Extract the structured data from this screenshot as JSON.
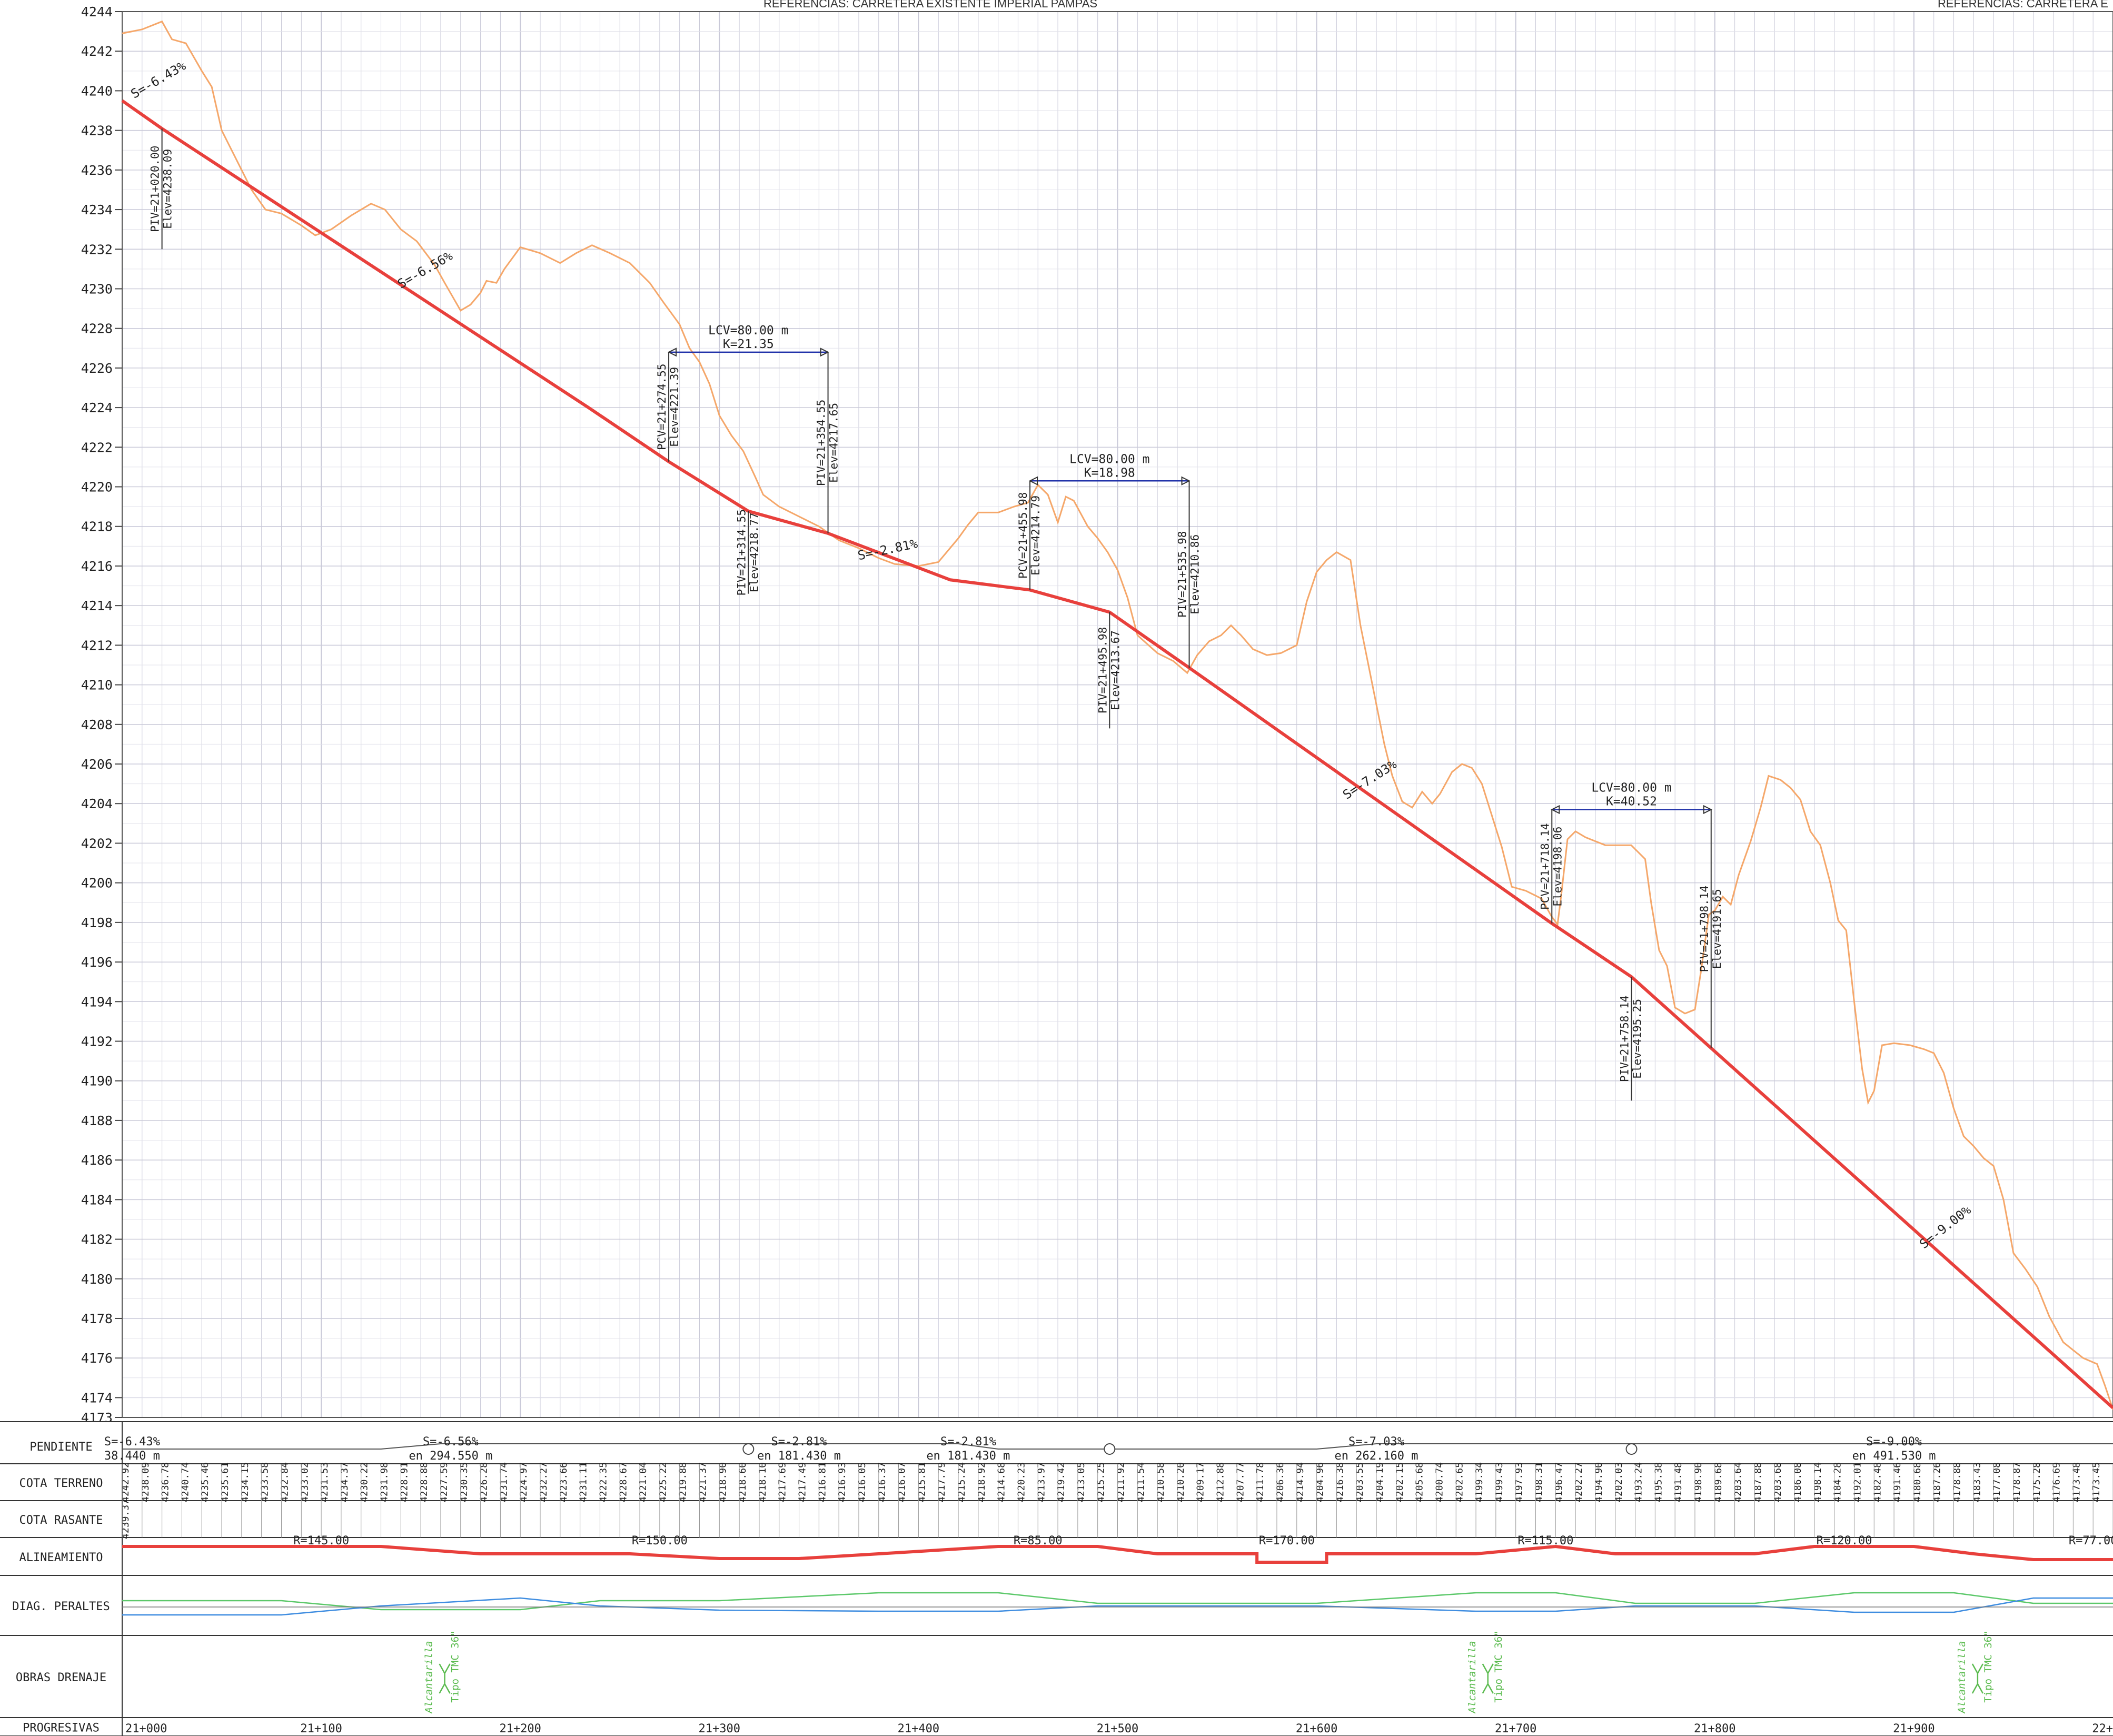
{
  "header": {
    "references_left": "REFERENCIAS:   CARRETERA EXISTENTE IMPERIAL PAMPAS",
    "references_right": "REFERENCIAS:   CARRETERA E"
  },
  "chart_data": {
    "type": "line",
    "x_range": [
      21000,
      22000
    ],
    "ylim": [
      4173,
      4244
    ],
    "y_ticks": [
      4244,
      4242,
      4240,
      4238,
      4236,
      4234,
      4232,
      4230,
      4228,
      4226,
      4224,
      4222,
      4220,
      4218,
      4216,
      4214,
      4212,
      4210,
      4208,
      4206,
      4204,
      4202,
      4200,
      4198,
      4196,
      4194,
      4192,
      4190,
      4188,
      4186,
      4184,
      4182,
      4180,
      4178,
      4176,
      4174,
      4173
    ],
    "ground_profile": [
      [
        21000,
        4242.9
      ],
      [
        21010,
        4243.1
      ],
      [
        21020,
        4243.5
      ],
      [
        21025,
        4242.6
      ],
      [
        21032,
        4242.4
      ],
      [
        21040,
        4241
      ],
      [
        21045,
        4240.2
      ],
      [
        21050,
        4238
      ],
      [
        21055,
        4237
      ],
      [
        21060,
        4236
      ],
      [
        21065,
        4235
      ],
      [
        21072,
        4234
      ],
      [
        21080,
        4233.8
      ],
      [
        21090,
        4233.2
      ],
      [
        21097,
        4232.7
      ],
      [
        21105,
        4233
      ],
      [
        21115,
        4233.7
      ],
      [
        21125,
        4234.3
      ],
      [
        21132,
        4234
      ],
      [
        21140,
        4233
      ],
      [
        21148,
        4232.4
      ],
      [
        21157,
        4231.2
      ],
      [
        21162,
        4230.3
      ],
      [
        21170,
        4228.9
      ],
      [
        21175,
        4229.2
      ],
      [
        21180,
        4229.8
      ],
      [
        21183,
        4230.4
      ],
      [
        21188,
        4230.3
      ],
      [
        21192,
        4231
      ],
      [
        21200,
        4232.1
      ],
      [
        21210,
        4231.8
      ],
      [
        21220,
        4231.3
      ],
      [
        21228,
        4231.8
      ],
      [
        21236,
        4232.2
      ],
      [
        21245,
        4231.8
      ],
      [
        21255,
        4231.3
      ],
      [
        21265,
        4230.3
      ],
      [
        21272,
        4229.3
      ],
      [
        21280,
        4228.2
      ],
      [
        21285,
        4227
      ],
      [
        21290,
        4226.3
      ],
      [
        21295,
        4225.2
      ],
      [
        21300,
        4223.6
      ],
      [
        21306,
        4222.6
      ],
      [
        21312,
        4221.8
      ],
      [
        21318,
        4220.5
      ],
      [
        21322,
        4219.6
      ],
      [
        21330,
        4219
      ],
      [
        21340,
        4218.5
      ],
      [
        21350,
        4218
      ],
      [
        21360,
        4217.3
      ],
      [
        21370,
        4216.9
      ],
      [
        21380,
        4216.4
      ],
      [
        21388,
        4216.1
      ],
      [
        21400,
        4216
      ],
      [
        21410,
        4216.2
      ],
      [
        21415,
        4216.8
      ],
      [
        21420,
        4217.4
      ],
      [
        21425,
        4218.1
      ],
      [
        21430,
        4218.7
      ],
      [
        21440,
        4218.7
      ],
      [
        21448,
        4219
      ],
      [
        21455,
        4219.2
      ],
      [
        21460,
        4220.1
      ],
      [
        21465,
        4219.6
      ],
      [
        21470,
        4218.2
      ],
      [
        21474,
        4219.5
      ],
      [
        21478,
        4219.3
      ],
      [
        21485,
        4218
      ],
      [
        21490,
        4217.4
      ],
      [
        21495,
        4216.7
      ],
      [
        21500,
        4215.8
      ],
      [
        21505,
        4214.4
      ],
      [
        21510,
        4212.5
      ],
      [
        21520,
        4211.6
      ],
      [
        21528,
        4211.2
      ],
      [
        21535,
        4210.6
      ],
      [
        21540,
        4211.5
      ],
      [
        21546,
        4212.2
      ],
      [
        21552,
        4212.5
      ],
      [
        21557,
        4213
      ],
      [
        21562,
        4212.5
      ],
      [
        21568,
        4211.8
      ],
      [
        21575,
        4211.5
      ],
      [
        21582,
        4211.6
      ],
      [
        21590,
        4212
      ],
      [
        21595,
        4214.2
      ],
      [
        21600,
        4215.7
      ],
      [
        21605,
        4216.3
      ],
      [
        21610,
        4216.7
      ],
      [
        21617,
        4216.3
      ],
      [
        21622,
        4213
      ],
      [
        21628,
        4210
      ],
      [
        21634,
        4207
      ],
      [
        21638,
        4205.4
      ],
      [
        21643,
        4204.1
      ],
      [
        21648,
        4203.8
      ],
      [
        21653,
        4204.6
      ],
      [
        21658,
        4204
      ],
      [
        21662,
        4204.5
      ],
      [
        21668,
        4205.6
      ],
      [
        21673,
        4206
      ],
      [
        21678,
        4205.8
      ],
      [
        21683,
        4205
      ],
      [
        21688,
        4203.4
      ],
      [
        21693,
        4201.8
      ],
      [
        21698,
        4199.8
      ],
      [
        21705,
        4199.6
      ],
      [
        21713,
        4199.2
      ],
      [
        21718,
        4198.3
      ],
      [
        21721,
        4197.9
      ],
      [
        21723,
        4199.5
      ],
      [
        21726,
        4202.2
      ],
      [
        21730,
        4202.6
      ],
      [
        21735,
        4202.3
      ],
      [
        21745,
        4201.9
      ],
      [
        21758,
        4201.9
      ],
      [
        21765,
        4201.2
      ],
      [
        21768,
        4199
      ],
      [
        21772,
        4196.6
      ],
      [
        21776,
        4195.8
      ],
      [
        21780,
        4193.7
      ],
      [
        21785,
        4193.4
      ],
      [
        21790,
        4193.6
      ],
      [
        21793,
        4195.5
      ],
      [
        21797,
        4198.4
      ],
      [
        21800,
        4198.6
      ],
      [
        21804,
        4199.3
      ],
      [
        21808,
        4198.9
      ],
      [
        21812,
        4200.4
      ],
      [
        21818,
        4202.1
      ],
      [
        21823,
        4203.8
      ],
      [
        21827,
        4205.4
      ],
      [
        21833,
        4205.2
      ],
      [
        21838,
        4204.8
      ],
      [
        21843,
        4204.2
      ],
      [
        21848,
        4202.6
      ],
      [
        21853,
        4201.9
      ],
      [
        21858,
        4200
      ],
      [
        21862,
        4198.1
      ],
      [
        21866,
        4197.6
      ],
      [
        21870,
        4194
      ],
      [
        21874,
        4190.6
      ],
      [
        21877,
        4188.9
      ],
      [
        21880,
        4189.5
      ],
      [
        21884,
        4191.8
      ],
      [
        21890,
        4191.9
      ],
      [
        21898,
        4191.8
      ],
      [
        21905,
        4191.6
      ],
      [
        21910,
        4191.4
      ],
      [
        21915,
        4190.4
      ],
      [
        21920,
        4188.6
      ],
      [
        21925,
        4187.2
      ],
      [
        21930,
        4186.7
      ],
      [
        21935,
        4186.1
      ],
      [
        21940,
        4185.7
      ],
      [
        21945,
        4184
      ],
      [
        21950,
        4181.3
      ],
      [
        21956,
        4180.5
      ],
      [
        21962,
        4179.6
      ],
      [
        21968,
        4178.1
      ],
      [
        21975,
        4176.8
      ],
      [
        21980,
        4176.4
      ],
      [
        21985,
        4176
      ],
      [
        21992,
        4175.7
      ],
      [
        21996,
        4174.6
      ],
      [
        22000,
        4173.4
      ]
    ],
    "grade_line": [
      [
        21000,
        4239.5
      ],
      [
        21020,
        4238.09
      ],
      [
        21234.55,
        4223.98
      ],
      [
        21274.55,
        4221.27
      ],
      [
        21314.55,
        4218.77
      ],
      [
        21354.55,
        4217.65
      ],
      [
        21415.98,
        4215.3
      ],
      [
        21455.98,
        4214.79
      ],
      [
        21495.98,
        4213.67
      ],
      [
        21535.98,
        4210.86
      ],
      [
        21718.14,
        4197.95
      ],
      [
        21758.14,
        4195.25
      ],
      [
        21798.14,
        4191.65
      ],
      [
        22000,
        4173.48
      ]
    ],
    "slope_labels": [
      {
        "text": "S=-6.43%",
        "x": 21006,
        "y": 4239.6,
        "angle": -30
      },
      {
        "text": "S=-6.56%",
        "x": 21140,
        "y": 4230.0,
        "angle": -30
      },
      {
        "text": "S=-2.81%",
        "x": 21370,
        "y": 4216.3,
        "angle": -12
      },
      {
        "text": "S=-7.03%",
        "x": 21615,
        "y": 4204.2,
        "angle": -33
      },
      {
        "text": "S=-9.00%",
        "x": 21905,
        "y": 4181.5,
        "angle": -38
      }
    ],
    "vertical_curves": [
      {
        "lcv": "LCV=80.00  m",
        "k": "K=21.35",
        "x1": 21274.55,
        "x2": 21354.55,
        "y": 4226.8
      },
      {
        "lcv": "LCV=80.00  m",
        "k": "K=18.98",
        "x1": 21455.98,
        "x2": 21535.98,
        "y": 4220.3
      },
      {
        "lcv": "LCV=80.00  m",
        "k": "K=40.52",
        "x1": 21718.14,
        "x2": 21798.14,
        "y": 4203.7
      }
    ],
    "station_labels": [
      {
        "l1": "PIV=21+020.00",
        "l2": "Elev=4238.09",
        "x": 21020,
        "y_top": 4238.09,
        "y_bot": 4232.0
      },
      {
        "l1": "PCV=21+274.55",
        "l2": "Elev=4221.39",
        "x": 21274.55,
        "y_top": 4226.8,
        "y_bot": 4221.27
      },
      {
        "l1": "PIV=21+354.55",
        "l2": "Elev=4217.65",
        "x": 21354.55,
        "y_top": 4226.8,
        "y_bot": 4217.65
      },
      {
        "l1": "PIV=21+314.55",
        "l2": "Elev=4218.77",
        "x": 21314.55,
        "y_top": 4218.77,
        "y_bot": 4214.6
      },
      {
        "l1": "PCV=21+455.98",
        "l2": "Elev=4214.79",
        "x": 21455.98,
        "y_top": 4220.3,
        "y_bot": 4214.79
      },
      {
        "l1": "PIV=21+535.98",
        "l2": "Elev=4210.86",
        "x": 21535.98,
        "y_top": 4220.3,
        "y_bot": 4210.86
      },
      {
        "l1": "PIV=21+495.98",
        "l2": "Elev=4213.67",
        "x": 21495.98,
        "y_top": 4213.67,
        "y_bot": 4207.8
      },
      {
        "l1": "PCV=21+718.14",
        "l2": "Elev=4198.06",
        "x": 21718.14,
        "y_top": 4203.7,
        "y_bot": 4197.95
      },
      {
        "l1": "PIV=21+798.14",
        "l2": "Elev=4191.65",
        "x": 21798.14,
        "y_top": 4203.7,
        "y_bot": 4191.65
      },
      {
        "l1": "PIV=21+758.14",
        "l2": "Elev=4195.25",
        "x": 21758.14,
        "y_top": 4195.25,
        "y_bot": 4189.0
      }
    ]
  },
  "bands": {
    "pendiente": {
      "label": "PENDIENTE",
      "prefix": "en",
      "items": [
        {
          "s": "S=-6.43%",
          "en": "38.440  m",
          "x": 21005
        },
        {
          "s": "S=-6.56%",
          "en": "en  294.550  m",
          "x": 21165
        },
        {
          "s": "S=-2.81%",
          "en": "en  181.430  m",
          "x": 21340
        },
        {
          "s": "S=-2.81%",
          "en": "en  181.430  m",
          "x": 21425
        },
        {
          "s": "S=-7.03%",
          "en": "en  262.160  m",
          "x": 21630
        },
        {
          "s": "S=-9.00%",
          "en": "en  491.530  m",
          "x": 21890
        }
      ],
      "markers": [
        21314.55,
        21495.98,
        21758.14
      ]
    },
    "cota_terreno": {
      "label": "COTA TERRENO",
      "values": [
        "4242.92",
        "4238.09",
        "4236.78",
        "4240.74",
        "4235.46",
        "4235.61",
        "4234.15",
        "4233.58",
        "4232.84",
        "4233.02",
        "4231.53",
        "4234.37",
        "4230.22",
        "4231.98",
        "4228.91",
        "4228.88",
        "4227.59",
        "4230.35",
        "4226.28",
        "4231.74",
        "4224.97",
        "4232.27",
        "4223.66",
        "4231.11",
        "4222.35",
        "4228.67",
        "4221.04",
        "4225.22",
        "4219.88",
        "4221.37",
        "4218.90",
        "4218.60",
        "4218.10",
        "4217.69",
        "4217.49",
        "4216.81",
        "4216.93",
        "4216.05",
        "4216.37",
        "4216.07",
        "4215.81",
        "4217.79",
        "4215.24",
        "4218.92",
        "4214.68",
        "4220.23",
        "4213.97",
        "4219.42",
        "4213.05",
        "4215.25",
        "4211.92",
        "4211.54",
        "4210.58",
        "4210.20",
        "4209.17",
        "4212.88",
        "4207.77",
        "4211.78",
        "4206.36",
        "4214.94",
        "4204.96",
        "4216.38",
        "4203.55",
        "4204.19",
        "4202.15",
        "4205.68",
        "4200.74",
        "4202.65",
        "4199.34",
        "4199.43",
        "4197.93",
        "4198.31",
        "4196.47",
        "4202.27",
        "4194.90",
        "4202.03",
        "4193.24",
        "4195.38",
        "4191.48",
        "4198.90",
        "4189.68",
        "4203.64",
        "4187.88",
        "4203.68",
        "4186.08",
        "4198.14",
        "4184.28",
        "4192.01",
        "4182.48",
        "4191.46",
        "4180.68",
        "4187.26",
        "4178.88",
        "4183.43",
        "4177.08",
        "4178.87",
        "4175.28",
        "4176.69",
        "4173.48",
        "4173.45"
      ]
    },
    "cota_rasante": {
      "label": "COTA RASANTE",
      "first": "4239.37"
    },
    "alineamiento": {
      "label": "ALINEAMIENTO",
      "radii": [
        {
          "t": "R=145.00",
          "x": 21100
        },
        {
          "t": "R=150.00",
          "x": 21270
        },
        {
          "t": "R=85.00",
          "x": 21460
        },
        {
          "t": "R=170.00",
          "x": 21585
        },
        {
          "t": "R=115.00",
          "x": 21715
        },
        {
          "t": "R=120.00",
          "x": 21865
        },
        {
          "t": "R=77.00",
          "x": 21990
        }
      ]
    },
    "peraltes": {
      "label": "DIAG.  PERALTES"
    },
    "obras_drenaje": {
      "label": "OBRAS DRENAJE",
      "items": [
        {
          "a": "Alcantarilla",
          "b": "Tipo TMC 36\"",
          "x": 21162
        },
        {
          "a": "Alcantarilla",
          "b": "Tipo TMC 36\"",
          "x": 21686
        },
        {
          "a": "Alcantarilla",
          "b": "Tipo TMC 36\"",
          "x": 21932
        }
      ]
    },
    "progresivas": {
      "label": "PROGRESIVAS",
      "ticks": [
        {
          "t": "21+000",
          "x": 21000
        },
        {
          "t": "21+100",
          "x": 21100
        },
        {
          "t": "21+200",
          "x": 21200
        },
        {
          "t": "21+300",
          "x": 21300
        },
        {
          "t": "21+400",
          "x": 21400
        },
        {
          "t": "21+500",
          "x": 21500
        },
        {
          "t": "21+600",
          "x": 21600
        },
        {
          "t": "21+700",
          "x": 21700
        },
        {
          "t": "21+800",
          "x": 21800
        },
        {
          "t": "21+900",
          "x": 21900
        },
        {
          "t": "22+",
          "x": 22000
        }
      ]
    }
  },
  "colors": {
    "ground": "#f5a76a",
    "grade": "#e8403c",
    "grid": "#c9c9d8",
    "peralte_green": "#5cc86a",
    "peralte_blue": "#3f8de0",
    "drain": "#5bbb4f",
    "text": "#222222"
  }
}
